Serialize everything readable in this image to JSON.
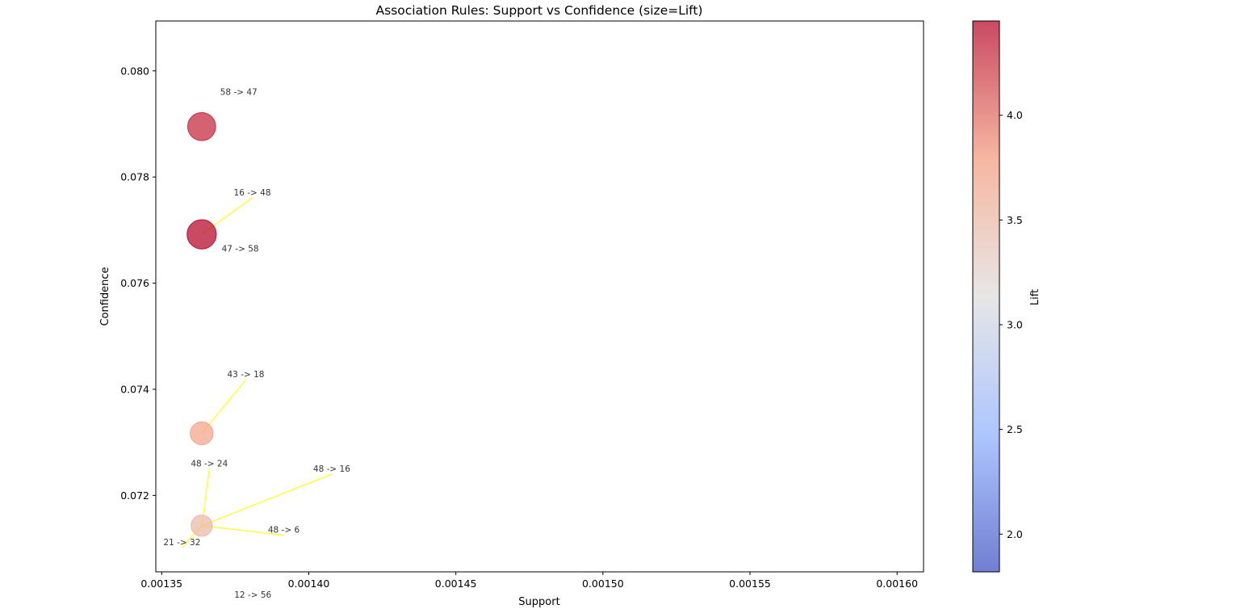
{
  "chart_data": {
    "type": "scatter",
    "title": "Association Rules: Support vs Confidence (size=Lift)",
    "xlabel": "Support",
    "ylabel": "Confidence",
    "xlim": [
      0.001348,
      0.001609
    ],
    "ylim": [
      0.07056,
      0.08094
    ],
    "x_ticks": [
      {
        "value": 0.00135,
        "label": "0.00135"
      },
      {
        "value": 0.0014,
        "label": "0.00140"
      },
      {
        "value": 0.00145,
        "label": "0.00145"
      },
      {
        "value": 0.0015,
        "label": "0.00150"
      },
      {
        "value": 0.00155,
        "label": "0.00155"
      },
      {
        "value": 0.0016,
        "label": "0.00160"
      }
    ],
    "y_ticks": [
      {
        "value": 0.072,
        "label": "0.072"
      },
      {
        "value": 0.074,
        "label": "0.074"
      },
      {
        "value": 0.076,
        "label": "0.076"
      },
      {
        "value": 0.078,
        "label": "0.078"
      },
      {
        "value": 0.08,
        "label": "0.080"
      }
    ],
    "colorbar": {
      "label": "Lift",
      "colormap": "coolwarm",
      "range": [
        1.82,
        4.45
      ],
      "ticks": [
        {
          "value": 2.0,
          "label": "2.0"
        },
        {
          "value": 2.5,
          "label": "2.5"
        },
        {
          "value": 3.0,
          "label": "3.0"
        },
        {
          "value": 3.5,
          "label": "3.5"
        },
        {
          "value": 4.0,
          "label": "4.0"
        }
      ]
    },
    "points": [
      {
        "support": 0.0013636,
        "confidence": 0.07895,
        "lift": 4.3
      },
      {
        "support": 0.0013636,
        "confidence": 0.07692,
        "lift": 4.45
      },
      {
        "support": 0.0013636,
        "confidence": 0.07317,
        "lift": 3.7
      },
      {
        "support": 0.0013636,
        "confidence": 0.07143,
        "lift": 3.5
      }
    ],
    "annotations": [
      {
        "text": "58 -> 47",
        "x": 0.0013636,
        "y": 0.07895,
        "tx": 0.0013762,
        "ty": 0.0795,
        "arrow": false
      },
      {
        "text": "16 -> 48",
        "x": 0.0013636,
        "y": 0.07692,
        "tx": 0.0013808,
        "ty": 0.07761,
        "arrow": true
      },
      {
        "text": "47 -> 58",
        "x": 0.0013636,
        "y": 0.07692,
        "tx": 0.0013767,
        "ty": 0.07655,
        "arrow": false
      },
      {
        "text": "43 -> 18",
        "x": 0.0013636,
        "y": 0.07317,
        "tx": 0.0013786,
        "ty": 0.07418,
        "arrow": true
      },
      {
        "text": "48 -> 24",
        "x": 0.0013636,
        "y": 0.07143,
        "tx": 0.0013662,
        "ty": 0.0725,
        "arrow": true
      },
      {
        "text": "48 -> 16",
        "x": 0.0013636,
        "y": 0.07143,
        "tx": 0.0014078,
        "ty": 0.0724,
        "arrow": true
      },
      {
        "text": "48 -> 6",
        "x": 0.0013636,
        "y": 0.07143,
        "tx": 0.0013915,
        "ty": 0.07125,
        "arrow": true
      },
      {
        "text": "21 -> 32",
        "x": 0.0013636,
        "y": 0.07143,
        "tx": 0.0013569,
        "ty": 0.07102,
        "arrow": true
      },
      {
        "text": "12 -> 56",
        "x": 0.0013636,
        "y": 0.07143,
        "tx": 0.001381,
        "ty": 0.07003,
        "arrow": false
      }
    ],
    "grid": false,
    "legend": "none"
  }
}
